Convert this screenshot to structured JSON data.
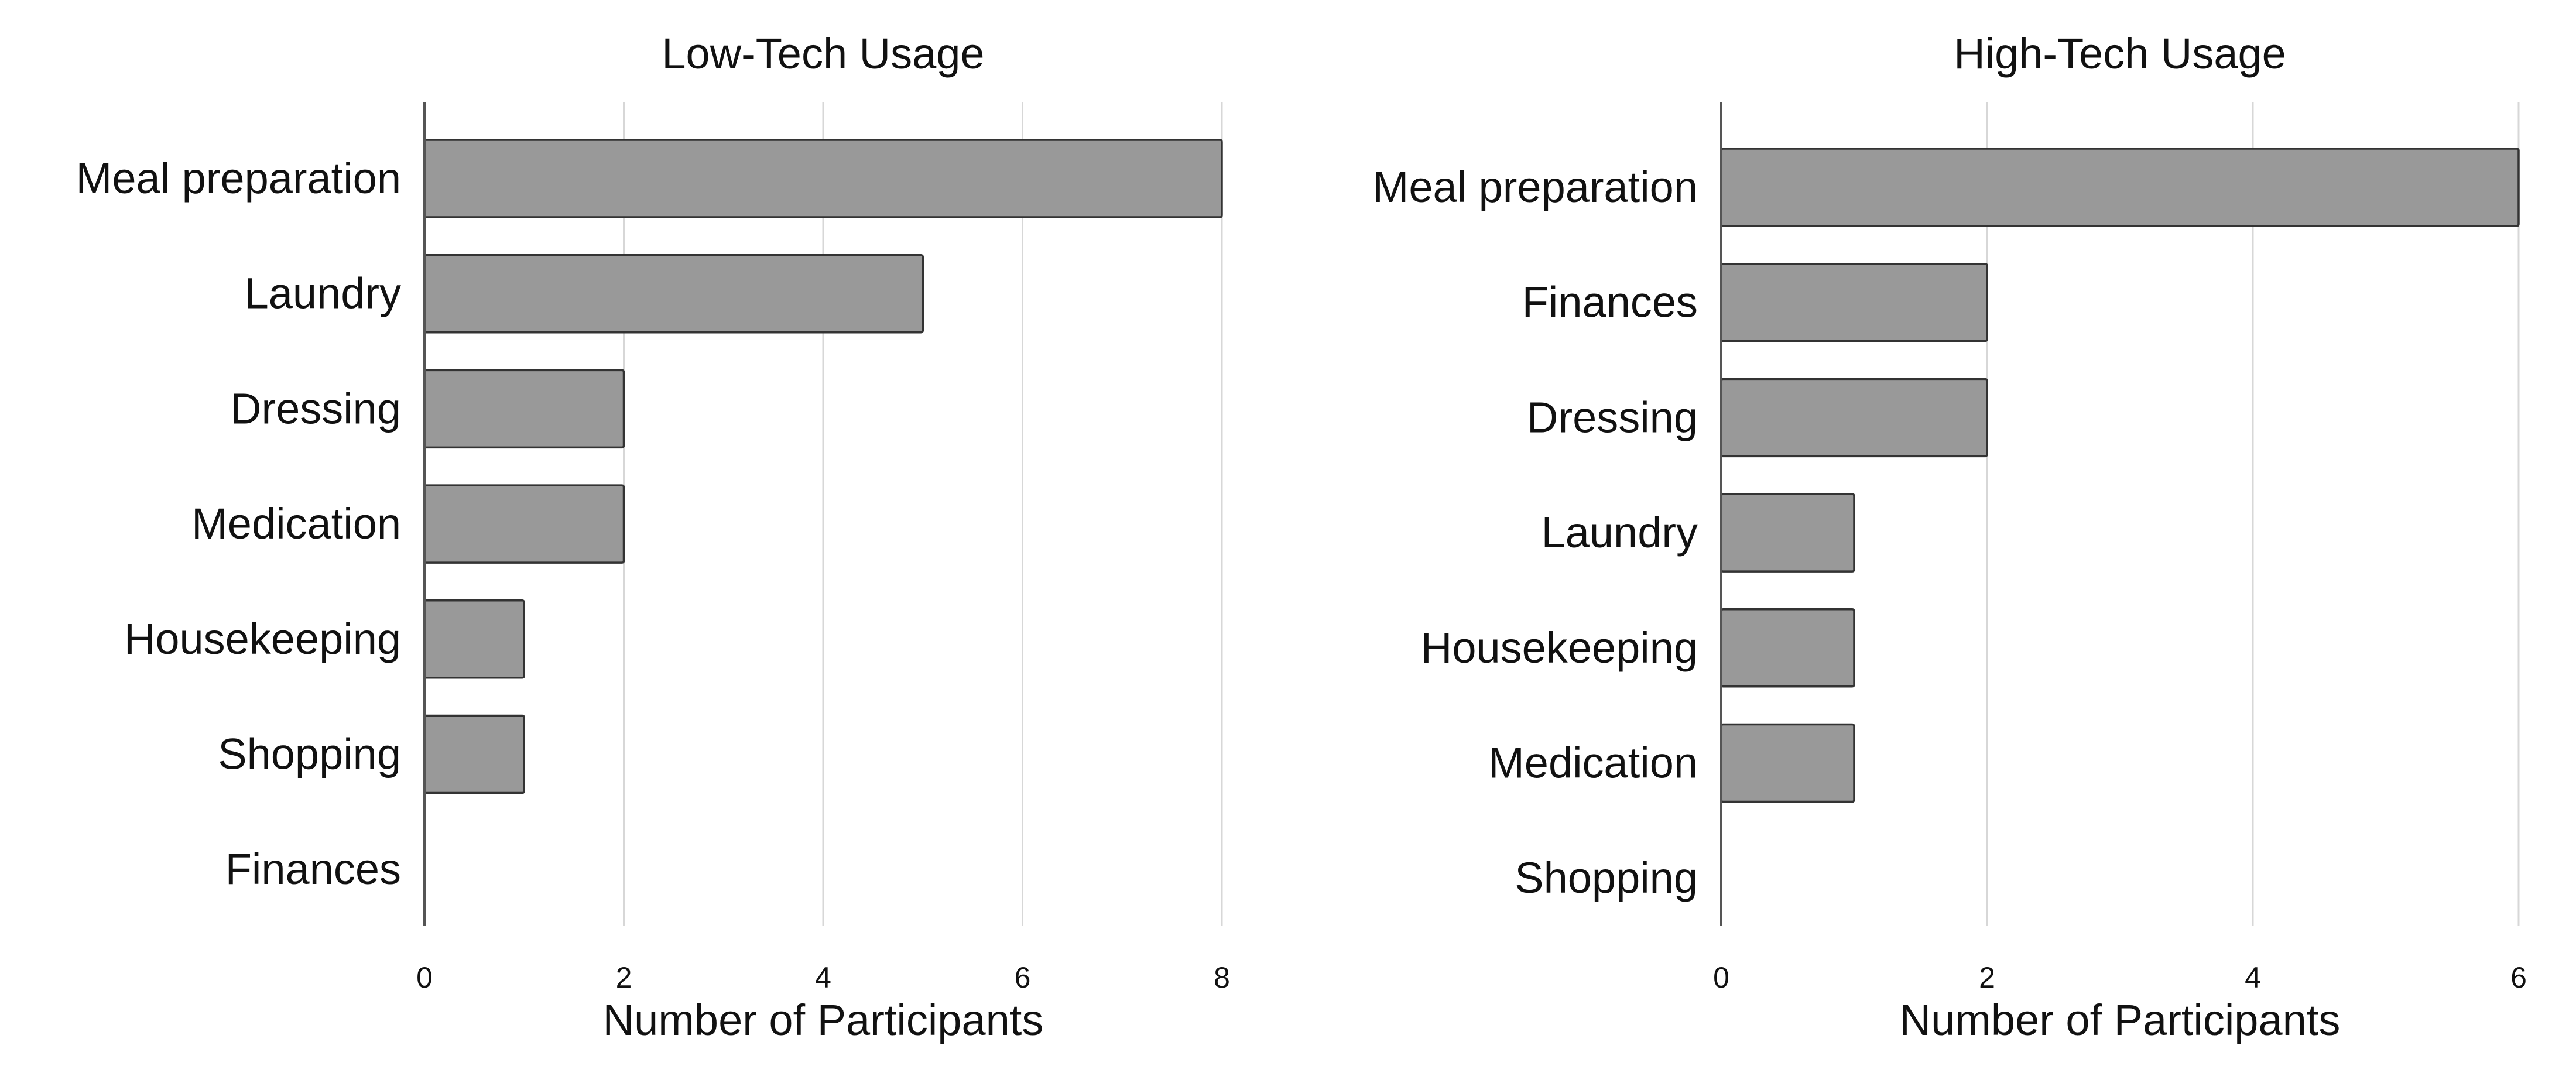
{
  "chart_data": [
    {
      "type": "bar",
      "orientation": "horizontal",
      "title": "Low-Tech Usage",
      "xlabel": "Number of Participants",
      "ylabel": "",
      "categories": [
        "Meal preparation",
        "Laundry",
        "Dressing",
        "Medication",
        "Housekeeping",
        "Shopping",
        "Finances"
      ],
      "values": [
        8,
        5,
        2,
        2,
        1,
        1,
        0
      ],
      "xlim": [
        0,
        8
      ],
      "xticks": [
        "0",
        "2",
        "4",
        "6",
        "8"
      ],
      "grid": "vertical",
      "bar_color": "#999999"
    },
    {
      "type": "bar",
      "orientation": "horizontal",
      "title": "High-Tech Usage",
      "xlabel": "Number of Participants",
      "ylabel": "",
      "categories": [
        "Meal preparation",
        "Finances",
        "Dressing",
        "Laundry",
        "Housekeeping",
        "Medication",
        "Shopping"
      ],
      "values": [
        6,
        2,
        2,
        1,
        1,
        1,
        0
      ],
      "xlim": [
        0,
        6
      ],
      "xticks": [
        "0",
        "2",
        "4",
        "6"
      ],
      "grid": "vertical",
      "bar_color": "#999999"
    }
  ]
}
